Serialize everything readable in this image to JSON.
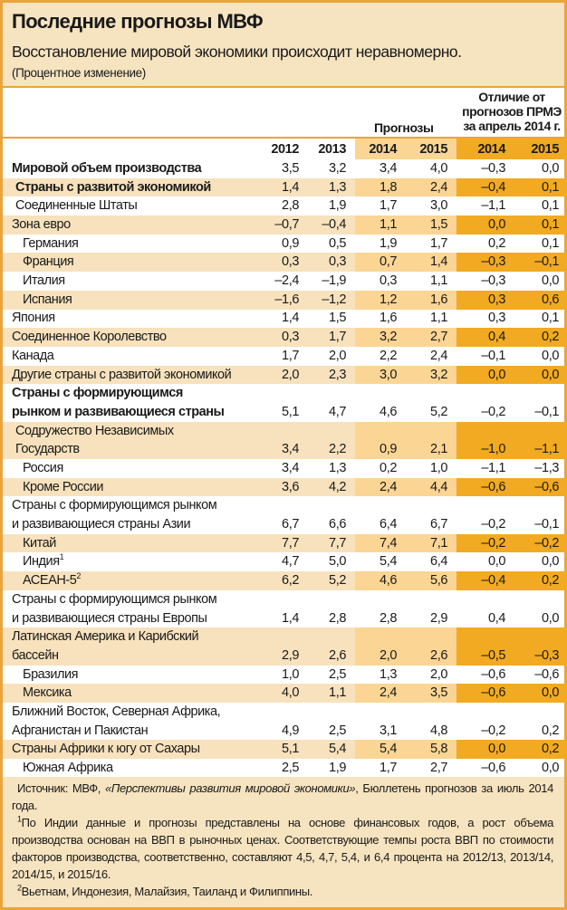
{
  "header": {
    "title": "Последние прогнозы МВФ",
    "subtitle": "Восстановление мировой экономики происходит неравномерно.",
    "unit": "(Процентное изменение)"
  },
  "columns": {
    "forecast_label": "Прогнозы",
    "diff_label_lines": [
      "Отличие от",
      "прогнозов ПРМЭ",
      "за апрель 2014 г."
    ],
    "years": [
      "2012",
      "2013",
      "2014",
      "2015",
      "2014",
      "2015"
    ]
  },
  "rows": [
    {
      "label": [
        "Мировой объем производства"
      ],
      "bold": true,
      "shaded": false,
      "indent": 0,
      "values": [
        "3,5",
        "3,2",
        "3,4",
        "4,0",
        "–0,3",
        "0,0"
      ]
    },
    {
      "label": [
        "Страны с развитой экономикой"
      ],
      "bold": true,
      "shaded": true,
      "indent": 1,
      "values": [
        "1,4",
        "1,3",
        "1,8",
        "2,4",
        "–0,4",
        "0,1"
      ]
    },
    {
      "label": [
        "Соединенные Штаты"
      ],
      "shaded": false,
      "indent": 1,
      "values": [
        "2,8",
        "1,9",
        "1,7",
        "3,0",
        "–1,1",
        "0,1"
      ]
    },
    {
      "label": [
        "Зона евро"
      ],
      "shaded": true,
      "indent": 0,
      "values": [
        "–0,7",
        "–0,4",
        "1,1",
        "1,5",
        "0,0",
        "0,1"
      ]
    },
    {
      "label": [
        "Германия"
      ],
      "shaded": false,
      "indent": 2,
      "values": [
        "0,9",
        "0,5",
        "1,9",
        "1,7",
        "0,2",
        "0,1"
      ]
    },
    {
      "label": [
        "Франция"
      ],
      "shaded": true,
      "indent": 2,
      "values": [
        "0,3",
        "0,3",
        "0,7",
        "1,4",
        "–0,3",
        "–0,1"
      ]
    },
    {
      "label": [
        "Италия"
      ],
      "shaded": false,
      "indent": 2,
      "values": [
        "–2,4",
        "–1,9",
        "0,3",
        "1,1",
        "–0,3",
        "0,0"
      ]
    },
    {
      "label": [
        "Испания"
      ],
      "shaded": true,
      "indent": 2,
      "values": [
        "–1,6",
        "–1,2",
        "1,2",
        "1,6",
        "0,3",
        "0,6"
      ]
    },
    {
      "label": [
        "Япония"
      ],
      "shaded": false,
      "indent": 0,
      "values": [
        "1,4",
        "1,5",
        "1,6",
        "1,1",
        "0,3",
        "0,1"
      ]
    },
    {
      "label": [
        "Соединенное Королевство"
      ],
      "shaded": true,
      "indent": 0,
      "values": [
        "0,3",
        "1,7",
        "3,2",
        "2,7",
        "0,4",
        "0,2"
      ]
    },
    {
      "label": [
        "Канада"
      ],
      "shaded": false,
      "indent": 0,
      "values": [
        "1,7",
        "2,0",
        "2,2",
        "2,4",
        "–0,1",
        "0,0"
      ]
    },
    {
      "label": [
        "Другие страны с развитой экономикой"
      ],
      "shaded": true,
      "indent": 0,
      "values": [
        "2,0",
        "2,3",
        "3,0",
        "3,2",
        "0,0",
        "0,0"
      ]
    },
    {
      "label": [
        "Страны с формирующимся",
        "рынком и развивающиеся страны"
      ],
      "bold": true,
      "shaded": false,
      "indent": 0,
      "values": [
        "5,1",
        "4,7",
        "4,6",
        "5,2",
        "–0,2",
        "–0,1"
      ]
    },
    {
      "label": [
        "Содружество Независимых",
        "Государств"
      ],
      "shaded": true,
      "indent": 1,
      "values": [
        "3,4",
        "2,2",
        "0,9",
        "2,1",
        "–1,0",
        "–1,1"
      ]
    },
    {
      "label": [
        "Россия"
      ],
      "shaded": false,
      "indent": 2,
      "values": [
        "3,4",
        "1,3",
        "0,2",
        "1,0",
        "–1,1",
        "–1,3"
      ]
    },
    {
      "label": [
        "Кроме России"
      ],
      "shaded": true,
      "indent": 2,
      "values": [
        "3,6",
        "4,2",
        "2,4",
        "4,4",
        "–0,6",
        "–0,6"
      ]
    },
    {
      "label": [
        "Страны с формирующимся рынком",
        "и развивающиеся страны Азии"
      ],
      "shaded": false,
      "indent": 0,
      "values": [
        "6,7",
        "6,6",
        "6,4",
        "6,7",
        "–0,2",
        "–0,1"
      ]
    },
    {
      "label": [
        "Китай"
      ],
      "shaded": true,
      "indent": 2,
      "values": [
        "7,7",
        "7,7",
        "7,4",
        "7,1",
        "–0,2",
        "–0,2"
      ]
    },
    {
      "label": [
        "Индия"
      ],
      "sup": "1",
      "shaded": false,
      "indent": 2,
      "values": [
        "4,7",
        "5,0",
        "5,4",
        "6,4",
        "0,0",
        "0,0"
      ]
    },
    {
      "label": [
        "АСЕАН-5"
      ],
      "sup": "2",
      "shaded": true,
      "indent": 2,
      "values": [
        "6,2",
        "5,2",
        "4,6",
        "5,6",
        "–0,4",
        "0,2"
      ]
    },
    {
      "label": [
        "Страны с формирующимся рынком",
        "и развивающиеся страны Европы"
      ],
      "shaded": false,
      "indent": 0,
      "values": [
        "1,4",
        "2,8",
        "2,8",
        "2,9",
        "0,4",
        "0,0"
      ]
    },
    {
      "label": [
        "Латинская Америка и Карибский",
        "бассейн"
      ],
      "shaded": true,
      "indent": 0,
      "values": [
        "2,9",
        "2,6",
        "2,0",
        "2,6",
        "–0,5",
        "–0,3"
      ]
    },
    {
      "label": [
        "Бразилия"
      ],
      "shaded": false,
      "indent": 2,
      "values": [
        "1,0",
        "2,5",
        "1,3",
        "2,0",
        "–0,6",
        "–0,6"
      ]
    },
    {
      "label": [
        "Мексика"
      ],
      "shaded": true,
      "indent": 2,
      "values": [
        "4,0",
        "1,1",
        "2,4",
        "3,5",
        "–0,6",
        "0,0"
      ]
    },
    {
      "label": [
        "Ближний Восток, Северная Африка,",
        "Афганистан и Пакистан"
      ],
      "shaded": false,
      "indent": 0,
      "values": [
        "4,9",
        "2,5",
        "3,1",
        "4,8",
        "–0,2",
        "0,2"
      ]
    },
    {
      "label": [
        "Страны Африки к югу от Сахары"
      ],
      "shaded": true,
      "indent": 0,
      "values": [
        "5,1",
        "5,4",
        "5,4",
        "5,8",
        "0,0",
        "0,2"
      ]
    },
    {
      "label": [
        "Южная Африка"
      ],
      "shaded": false,
      "indent": 2,
      "values": [
        "2,5",
        "1,9",
        "1,7",
        "2,7",
        "–0,6",
        "0,0"
      ]
    }
  ],
  "footnotes": {
    "source_prefix": "Источник: МВФ, ",
    "source_title": "«Перспективы развития мировой экономики»",
    "source_suffix": ", Бюллетень прогнозов за июль 2014 года.",
    "note1_mark": "1",
    "note1": "По Индии данные и прогнозы представлены на основе финансовых годов, а рост объема производства основан на ВВП в рыночных ценах. Соответствующие темпы роста ВВП по стоимости факторов производства, соответственно, составляют 4,5, 4,7, 5,4, и 6,4 процента на 2012/13, 2013/14, 2014/15, и 2015/16.",
    "note2_mark": "2",
    "note2": "Вьетнам, Индонезия, Малайзия, Таиланд и Филиппины."
  }
}
